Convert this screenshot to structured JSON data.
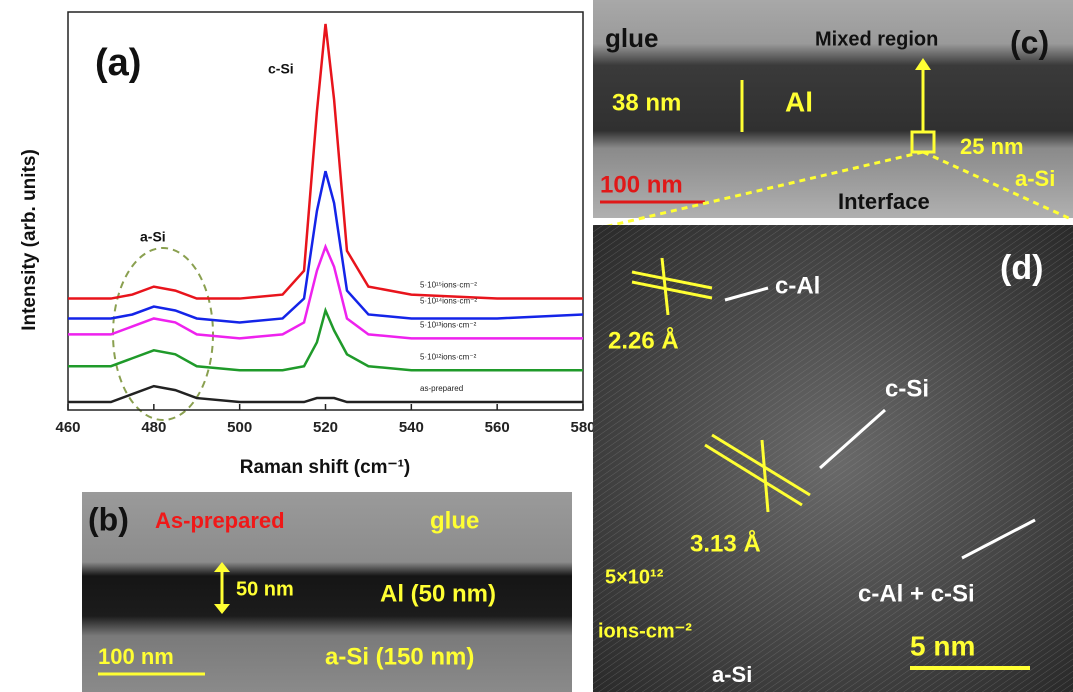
{
  "chart_data": {
    "type": "line",
    "panel_label": "(a)",
    "xlabel": "Raman shift (cm⁻¹)",
    "ylabel": "Intensity (arb. units)",
    "annotations": [
      "c-Si",
      "a-Si"
    ],
    "x": [
      460,
      470,
      475,
      480,
      485,
      490,
      500,
      510,
      515,
      518,
      520,
      522,
      525,
      530,
      540,
      560,
      580
    ],
    "xlim": [
      460,
      580
    ],
    "xticks": [
      460,
      480,
      500,
      520,
      540,
      560,
      580
    ],
    "ylim": [
      0,
      100
    ],
    "series": [
      {
        "name": "5·10¹⁵ions·cm⁻²",
        "color": "#e8141c",
        "values": [
          28,
          28,
          29,
          31,
          30,
          28,
          28,
          29,
          35,
          75,
          97,
          78,
          40,
          31,
          29,
          28,
          28
        ]
      },
      {
        "name": "5·10¹⁴ions·cm⁻²",
        "color": "#1424e8",
        "values": [
          23,
          23,
          24,
          26,
          25,
          23,
          22,
          23,
          28,
          50,
          60,
          52,
          30,
          24,
          23,
          23,
          24
        ]
      },
      {
        "name": "5·10¹³ions·cm⁻²",
        "color": "#ee22ee",
        "values": [
          19,
          19,
          21,
          23,
          22,
          19,
          18,
          19,
          22,
          35,
          41,
          36,
          23,
          19,
          18,
          18,
          18
        ]
      },
      {
        "name": "5·10¹²ions·cm⁻²",
        "color": "#1f9a2a",
        "values": [
          11,
          11,
          13,
          15,
          14,
          11,
          10,
          10,
          11,
          17,
          25,
          20,
          14,
          11,
          10,
          10,
          10
        ]
      },
      {
        "name": "as-prepared",
        "color": "#222222",
        "values": [
          2,
          2,
          4,
          6,
          5,
          3,
          2,
          2,
          2,
          3,
          3,
          3,
          2,
          2,
          2,
          2,
          2
        ]
      }
    ]
  },
  "panel_b": {
    "label": "(b)",
    "sample": "As-prepared",
    "glue": "glue",
    "thickness": "50 nm",
    "al": "Al (50 nm)",
    "asi": "a-Si (150 nm)",
    "scale": "100 nm"
  },
  "panel_c": {
    "glue": "glue",
    "mixed": "Mixed region",
    "label": "(c)",
    "thickness_al": "38 nm",
    "al": "Al",
    "thickness_mix": "25 nm",
    "scale": "100 nm",
    "interface": "Interface",
    "asi": "a-Si"
  },
  "panel_d": {
    "label": "(d)",
    "cal": "c-Al",
    "d_al": "2.26 Å",
    "csi": "c-Si",
    "d_si": "3.13 Å",
    "dose": "5×10¹²",
    "dose_unit": "ions-cm⁻²",
    "mix": "c-Al + c-Si",
    "scale": "5 nm",
    "asi": "a-Si"
  }
}
